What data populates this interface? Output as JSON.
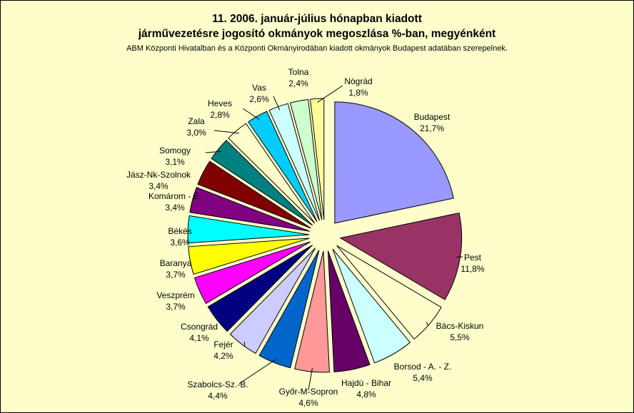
{
  "chart_data": {
    "type": "pie",
    "title_line1": "11. 2006. január-július hónapban kiadott",
    "title_line2": "járművezetésre jogosító okmányok megoszlása %-ban, megyénként",
    "subtitle": "ABM Központi Hivatalban és a Központi Okmányirodában kiadott okmányok Budapest adatában szerepelnek.",
    "legend": "none",
    "slices": [
      {
        "label": "Budapest",
        "value": 21.7,
        "value_text": "21,7%",
        "color": "#9999ff"
      },
      {
        "label": "Pest",
        "value": 11.8,
        "value_text": "11,8%",
        "color": "#993366"
      },
      {
        "label": "Bács-Kiskun",
        "value": 5.5,
        "value_text": "5,5%",
        "color": "#ffffcc"
      },
      {
        "label": "Borsod - A. - Z.",
        "value": 5.4,
        "value_text": "5,4%",
        "color": "#ccffff"
      },
      {
        "label": "Hajdú - Bihar",
        "value": 4.8,
        "value_text": "4,8%",
        "color": "#660066"
      },
      {
        "label": "Győr-M-Sopron",
        "value": 4.6,
        "value_text": "4,6%",
        "color": "#ff9999"
      },
      {
        "label": "Szabolcs-Sz.-B.",
        "value": 4.4,
        "value_text": "4,4%",
        "color": "#0066cc"
      },
      {
        "label": "Fejér",
        "value": 4.2,
        "value_text": "4,2%",
        "color": "#ccccff"
      },
      {
        "label": "Csongrád",
        "value": 4.1,
        "value_text": "4,1%",
        "color": "#000080"
      },
      {
        "label": "Veszprém",
        "value": 3.7,
        "value_text": "3,7%",
        "color": "#ff00ff"
      },
      {
        "label": "Baranya",
        "value": 3.7,
        "value_text": "3,7%",
        "color": "#ffff00"
      },
      {
        "label": "Békés",
        "value": 3.6,
        "value_text": "3,6%",
        "color": "#00ffff"
      },
      {
        "label": "Komárom - E.",
        "value": 3.4,
        "value_text": "3,4%",
        "color": "#800080"
      },
      {
        "label": "Jász-Nk-Szolnok",
        "value": 3.4,
        "value_text": "3,4%",
        "color": "#800000"
      },
      {
        "label": "Somogy",
        "value": 3.1,
        "value_text": "3,1%",
        "color": "#008080"
      },
      {
        "label": "Zala",
        "value": 3.0,
        "value_text": "3,0%",
        "color": "#ffffcc"
      },
      {
        "label": "Heves",
        "value": 2.8,
        "value_text": "2,8%",
        "color": "#00ccff"
      },
      {
        "label": "Vas",
        "value": 2.6,
        "value_text": "2,6%",
        "color": "#ccffff"
      },
      {
        "label": "Tolna",
        "value": 2.4,
        "value_text": "2,4%",
        "color": "#ccffcc"
      },
      {
        "label": "Nógrád",
        "value": 1.8,
        "value_text": "1,8%",
        "color": "#ffff99"
      }
    ]
  }
}
